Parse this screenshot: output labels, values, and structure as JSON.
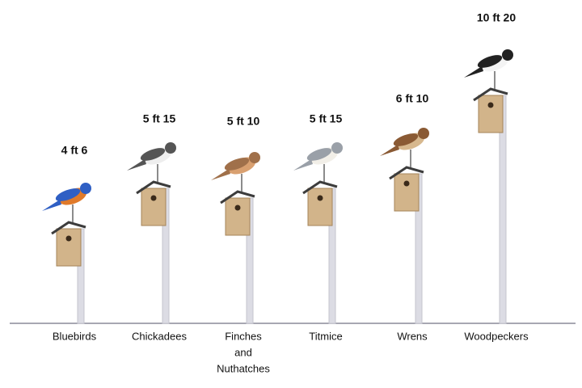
{
  "items": [
    {
      "label": "4 ft 6",
      "name_lines": [
        "Bluebirds"
      ]
    },
    {
      "label": "5 ft 15",
      "name_lines": [
        "Chickadees"
      ]
    },
    {
      "label": "5 ft 10",
      "name_lines": [
        "Finches",
        "and",
        "Nuthatches"
      ]
    },
    {
      "label": "5 ft 15",
      "name_lines": [
        "Titmice"
      ]
    },
    {
      "label": "6 ft 10",
      "name_lines": [
        "Wrens"
      ]
    },
    {
      "label": "10 ft 20",
      "name_lines": [
        "Woodpeckers"
      ]
    }
  ]
}
